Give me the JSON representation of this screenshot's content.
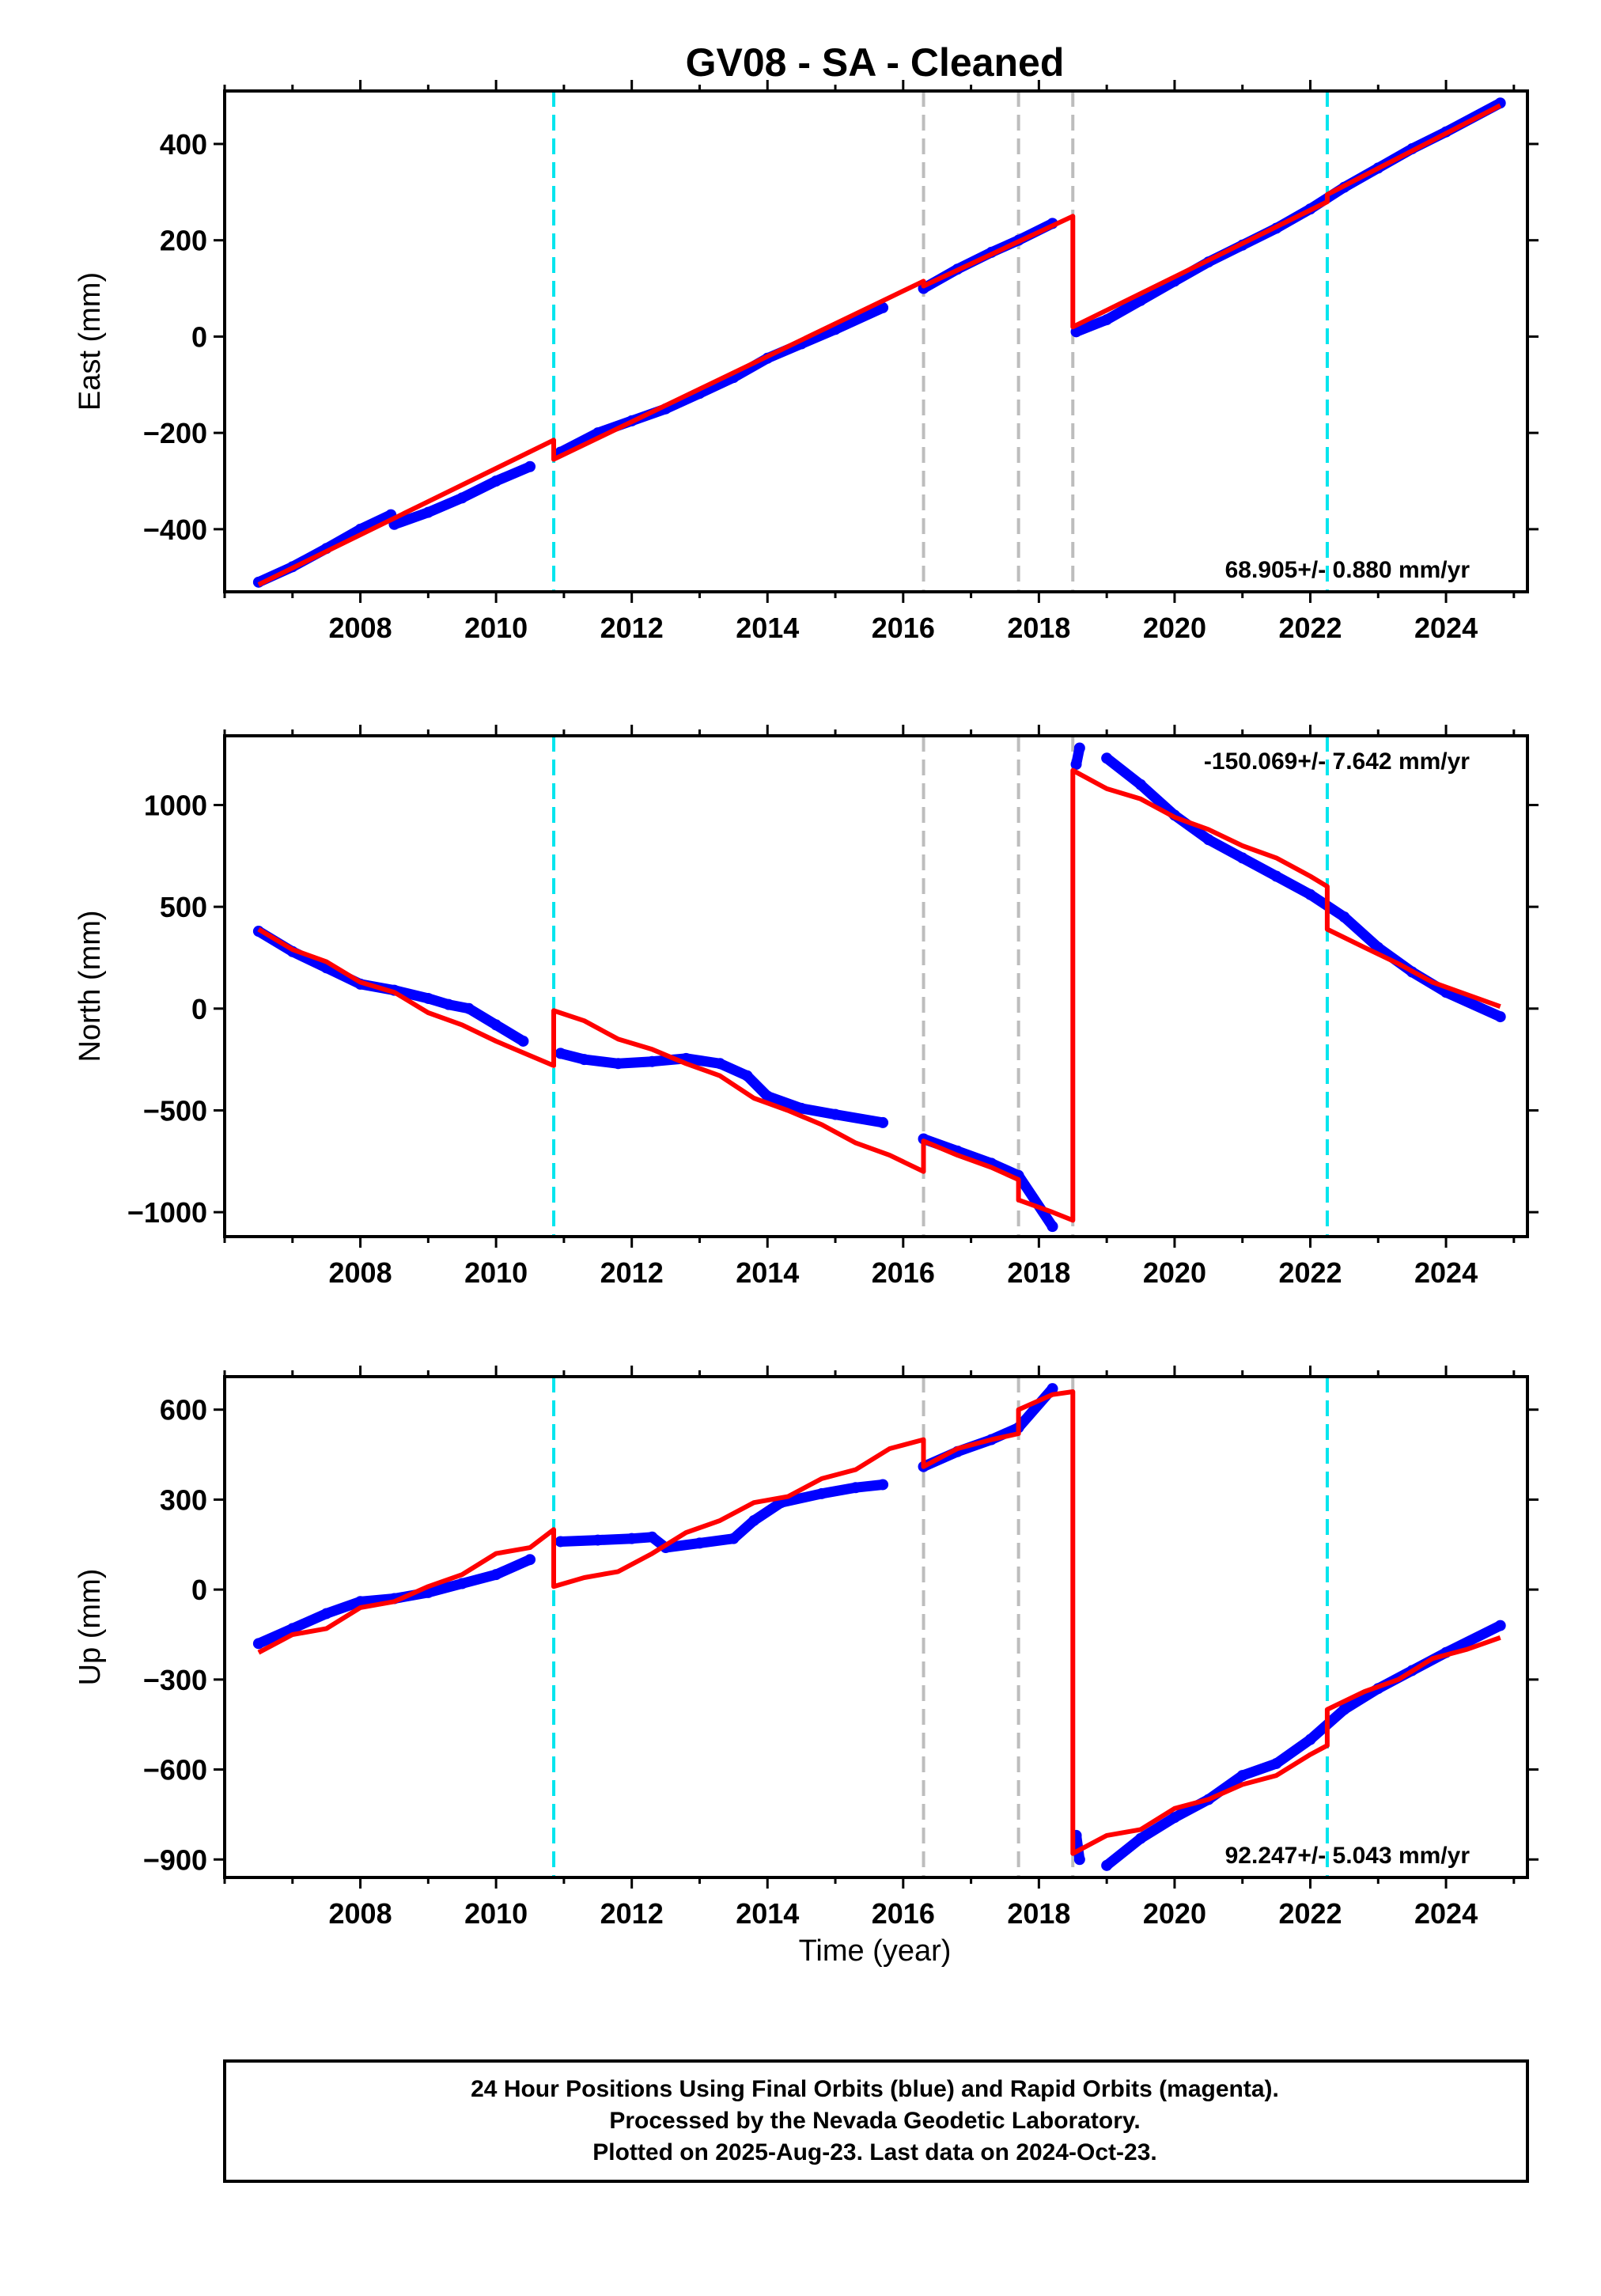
{
  "title": "GV08  - SA - Cleaned",
  "footer": [
    "24 Hour Positions Using Final Orbits (blue) and Rapid Orbits (magenta).",
    "Processed by the Nevada Geodetic Laboratory.",
    "Plotted on 2025-Aug-23. Last data on 2024-Oct-23."
  ],
  "colors": {
    "final_orbits": "#0000ff",
    "model": "#ff0000",
    "offset_equipment": "#00e5ee",
    "offset_other": "#bdbdbd"
  },
  "xlabel": "Time (year)",
  "chart_data": [
    {
      "type": "scatter",
      "panel": "east",
      "ylabel": "East (mm)",
      "xlim": [
        2006.0,
        2025.2
      ],
      "ylim": [
        -530,
        510
      ],
      "xticks": [
        2008,
        2010,
        2012,
        2014,
        2016,
        2018,
        2020,
        2022,
        2024
      ],
      "yticks": [
        -400,
        -200,
        0,
        200,
        400
      ],
      "grid": false,
      "rate_label": "68.905+/- 0.880 mm/yr",
      "rate_position": "bottom-right",
      "offsets_cyan": [
        2010.85,
        2022.25
      ],
      "offsets_gray": [
        2016.3,
        2017.7,
        2018.5
      ],
      "series": [
        {
          "name": "Final Orbits",
          "segments": [
            {
              "x": [
                2006.5,
                2007.0,
                2007.5,
                2008.0,
                2008.45
              ],
              "y": [
                -510,
                -478,
                -440,
                -400,
                -370
              ]
            },
            {
              "x": [
                2008.5,
                2009.0,
                2009.5,
                2010.0,
                2010.5
              ],
              "y": [
                -390,
                -365,
                -335,
                -300,
                -270
              ]
            },
            {
              "x": [
                2010.95,
                2011.5,
                2012.0,
                2012.5,
                2013.0,
                2013.5,
                2014.0,
                2014.5,
                2015.0,
                2015.7
              ],
              "y": [
                -240,
                -200,
                -175,
                -150,
                -118,
                -85,
                -45,
                -15,
                15,
                60
              ]
            },
            {
              "x": [
                2016.3,
                2016.8,
                2017.3,
                2017.7,
                2018.2
              ],
              "y": [
                100,
                140,
                175,
                200,
                235
              ]
            },
            {
              "x": [
                2018.55,
                2019.0,
                2019.5,
                2020.0,
                2020.5,
                2021.0,
                2021.5,
                2022.0,
                2022.5,
                2023.0,
                2023.5,
                2024.0,
                2024.8
              ],
              "y": [
                10,
                35,
                75,
                115,
                155,
                190,
                225,
                265,
                310,
                350,
                390,
                425,
                485
              ]
            }
          ]
        },
        {
          "name": "Model",
          "segments": [
            {
              "x": [
                2006.5,
                2010.85
              ],
              "y": [
                -515,
                -215
              ]
            },
            {
              "x": [
                2010.85,
                2016.3
              ],
              "y": [
                -255,
                115
              ]
            },
            {
              "x": [
                2016.3,
                2018.5
              ],
              "y": [
                105,
                250
              ]
            },
            {
              "x": [
                2018.5,
                2022.25
              ],
              "y": [
                20,
                280
              ]
            },
            {
              "x": [
                2022.25,
                2024.8
              ],
              "y": [
                295,
                480
              ]
            }
          ]
        }
      ]
    },
    {
      "type": "scatter",
      "panel": "north",
      "ylabel": "North (mm)",
      "xlim": [
        2006.0,
        2025.2
      ],
      "ylim": [
        -1120,
        1340
      ],
      "xticks": [
        2008,
        2010,
        2012,
        2014,
        2016,
        2018,
        2020,
        2022,
        2024
      ],
      "yticks": [
        -1000,
        -500,
        0,
        500,
        1000
      ],
      "grid": false,
      "rate_label": "-150.069+/- 7.642 mm/yr",
      "rate_position": "top-right",
      "offsets_cyan": [
        2010.85,
        2022.25
      ],
      "offsets_gray": [
        2016.3,
        2017.7,
        2018.5
      ],
      "series": [
        {
          "name": "Final Orbits",
          "segments": [
            {
              "x": [
                2006.5,
                2007.0,
                2007.5,
                2008.0,
                2008.5,
                2009.0,
                2009.3,
                2009.6,
                2010.0,
                2010.4
              ],
              "y": [
                380,
                280,
                200,
                120,
                90,
                50,
                20,
                0,
                -80,
                -160
              ]
            },
            {
              "x": [
                2010.95,
                2011.3,
                2011.8,
                2012.3,
                2012.8,
                2013.3,
                2013.7,
                2014.0,
                2014.5,
                2015.0,
                2015.7
              ],
              "y": [
                -220,
                -250,
                -270,
                -260,
                -245,
                -270,
                -330,
                -430,
                -490,
                -520,
                -560
              ]
            },
            {
              "x": [
                2016.3,
                2016.8,
                2017.3,
                2017.7,
                2018.2
              ],
              "y": [
                -640,
                -700,
                -760,
                -820,
                -1070
              ]
            },
            {
              "x": [
                2018.55,
                2018.6
              ],
              "y": [
                1200,
                1280
              ]
            },
            {
              "x": [
                2019.0,
                2019.5,
                2020.0,
                2020.5,
                2021.0,
                2021.5,
                2022.0,
                2022.5,
                2023.0,
                2023.5,
                2024.0,
                2024.8
              ],
              "y": [
                1230,
                1100,
                950,
                830,
                740,
                650,
                560,
                450,
                300,
                180,
                80,
                -40
              ]
            }
          ]
        },
        {
          "name": "Model",
          "segments": [
            {
              "x": [
                2006.5,
                2007.0,
                2007.5,
                2008.0,
                2008.5,
                2009.0,
                2009.5,
                2010.0,
                2010.85
              ],
              "y": [
                390,
                290,
                230,
                130,
                80,
                -20,
                -80,
                -160,
                -280
              ]
            },
            {
              "x": [
                2010.85,
                2011.3,
                2011.8,
                2012.3,
                2012.8,
                2013.3,
                2013.8,
                2014.3,
                2014.8,
                2015.3,
                2015.8,
                2016.3
              ],
              "y": [
                -10,
                -60,
                -150,
                -200,
                -270,
                -330,
                -440,
                -500,
                -570,
                -660,
                -720,
                -800
              ]
            },
            {
              "x": [
                2016.3,
                2016.8,
                2017.3,
                2017.7
              ],
              "y": [
                -650,
                -720,
                -780,
                -840
              ]
            },
            {
              "x": [
                2017.7,
                2018.2,
                2018.5
              ],
              "y": [
                -940,
                -1000,
                -1040
              ]
            },
            {
              "x": [
                2018.5,
                2019.0,
                2019.5,
                2020.0,
                2020.5,
                2021.0,
                2021.5,
                2022.0,
                2022.25
              ],
              "y": [
                1170,
                1080,
                1030,
                940,
                880,
                800,
                740,
                650,
                600
              ]
            },
            {
              "x": [
                2022.25,
                2022.8,
                2023.3,
                2023.8,
                2024.3,
                2024.8
              ],
              "y": [
                390,
                300,
                220,
                130,
                70,
                10
              ]
            }
          ]
        }
      ]
    },
    {
      "type": "scatter",
      "panel": "up",
      "ylabel": "Up (mm)",
      "xlim": [
        2006.0,
        2025.2
      ],
      "ylim": [
        -960,
        710
      ],
      "xticks": [
        2008,
        2010,
        2012,
        2014,
        2016,
        2018,
        2020,
        2022,
        2024
      ],
      "yticks": [
        -900,
        -600,
        -300,
        0,
        300,
        600
      ],
      "grid": false,
      "rate_label": "92.247+/- 5.043 mm/yr",
      "rate_position": "bottom-right",
      "offsets_cyan": [
        2010.85,
        2022.25
      ],
      "offsets_gray": [
        2016.3,
        2017.7,
        2018.5
      ],
      "series": [
        {
          "name": "Final Orbits",
          "segments": [
            {
              "x": [
                2006.5,
                2007.0,
                2007.5,
                2008.0,
                2008.5,
                2009.0,
                2009.5,
                2010.0,
                2010.5
              ],
              "y": [
                -180,
                -130,
                -80,
                -40,
                -30,
                -10,
                20,
                50,
                100
              ]
            },
            {
              "x": [
                2010.95,
                2011.5,
                2012.0,
                2012.3,
                2012.5,
                2013.0,
                2013.5,
                2013.8,
                2014.2,
                2014.8,
                2015.3,
                2015.7
              ],
              "y": [
                160,
                165,
                170,
                175,
                140,
                155,
                170,
                230,
                290,
                320,
                340,
                350
              ]
            },
            {
              "x": [
                2016.3,
                2016.8,
                2017.3,
                2017.7,
                2018.2
              ],
              "y": [
                410,
                460,
                500,
                540,
                670
              ]
            },
            {
              "x": [
                2018.55,
                2018.6
              ],
              "y": [
                -820,
                -900
              ]
            },
            {
              "x": [
                2019.0,
                2019.5,
                2020.0,
                2020.5,
                2021.0,
                2021.5,
                2022.0,
                2022.5,
                2023.0,
                2023.5,
                2024.0,
                2024.8
              ],
              "y": [
                -920,
                -830,
                -760,
                -700,
                -620,
                -580,
                -500,
                -400,
                -330,
                -270,
                -210,
                -120
              ]
            }
          ]
        },
        {
          "name": "Model",
          "segments": [
            {
              "x": [
                2006.5,
                2007.0,
                2007.5,
                2008.0,
                2008.5,
                2009.0,
                2009.5,
                2010.0,
                2010.5,
                2010.85
              ],
              "y": [
                -210,
                -150,
                -130,
                -60,
                -40,
                10,
                50,
                120,
                140,
                200
              ]
            },
            {
              "x": [
                2010.85,
                2011.3,
                2011.8,
                2012.3,
                2012.8,
                2013.3,
                2013.8,
                2014.3,
                2014.8,
                2015.3,
                2015.8,
                2016.3
              ],
              "y": [
                10,
                40,
                60,
                120,
                190,
                230,
                290,
                310,
                370,
                400,
                470,
                500
              ]
            },
            {
              "x": [
                2016.3,
                2016.8,
                2017.3,
                2017.7
              ],
              "y": [
                410,
                470,
                500,
                520
              ]
            },
            {
              "x": [
                2017.7,
                2018.2,
                2018.5
              ],
              "y": [
                600,
                650,
                660
              ]
            },
            {
              "x": [
                2018.5,
                2019.0,
                2019.5,
                2020.0,
                2020.5,
                2021.0,
                2021.5,
                2022.0,
                2022.25
              ],
              "y": [
                -880,
                -820,
                -800,
                -730,
                -700,
                -650,
                -620,
                -550,
                -520
              ]
            },
            {
              "x": [
                2022.25,
                2022.8,
                2023.3,
                2023.8,
                2024.3,
                2024.8
              ],
              "y": [
                -400,
                -340,
                -300,
                -230,
                -200,
                -160
              ]
            }
          ]
        }
      ]
    }
  ]
}
